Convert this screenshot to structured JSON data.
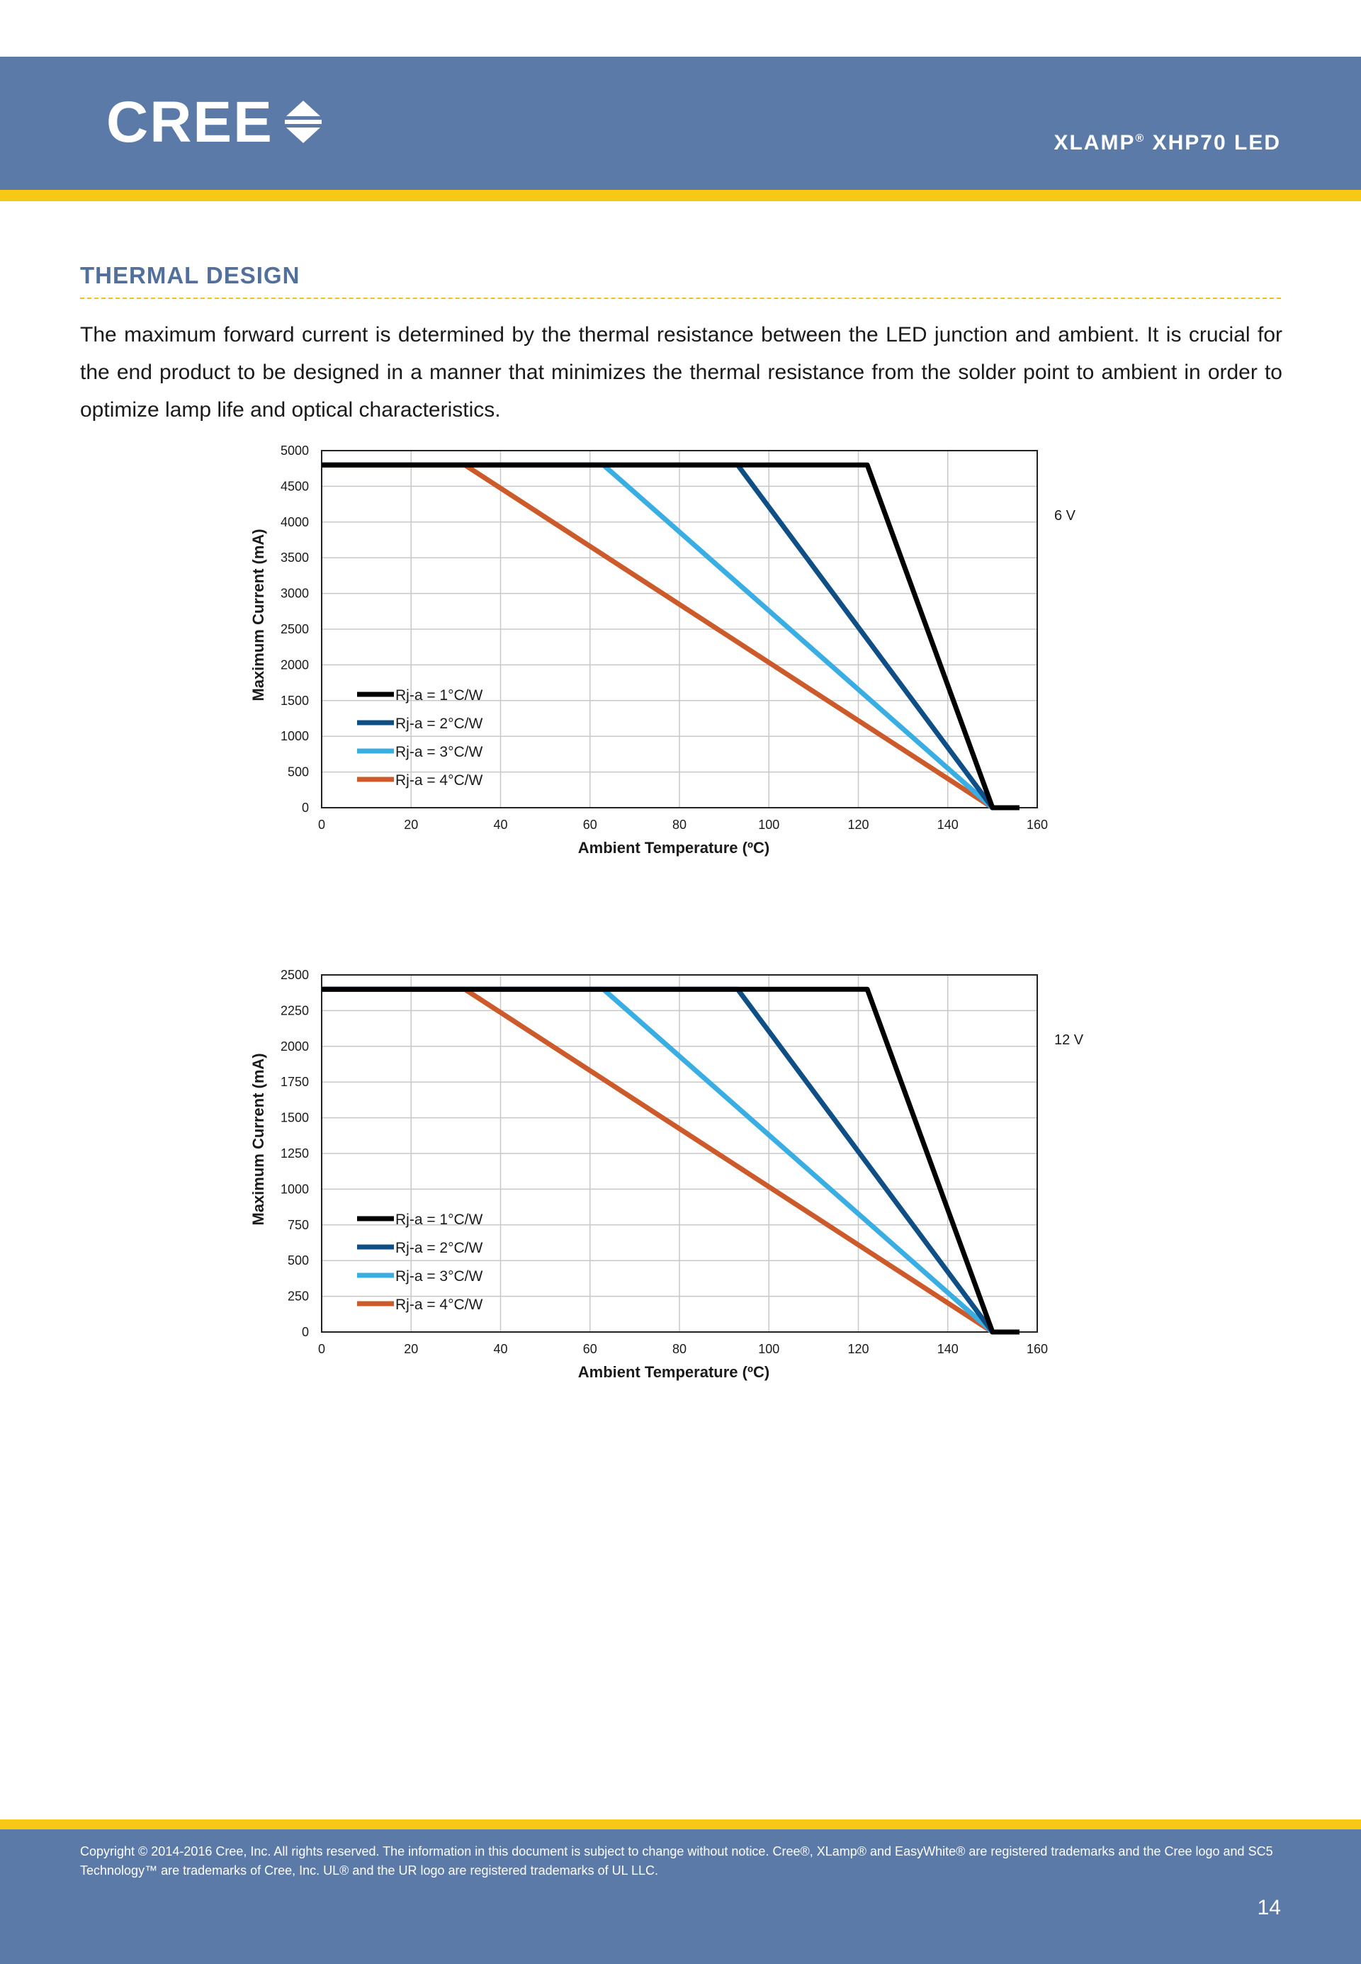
{
  "header": {
    "brand": "CREE",
    "product": "XLAMP",
    "registered": "®",
    "model": "XHP70 LED"
  },
  "section": {
    "title": "THERMAL DESIGN",
    "intro": "The maximum forward current is determined by the thermal resistance between the LED junction and ambient. It is crucial for the end product to be designed in a manner that minimizes the thermal resistance from the solder point to ambient in order to optimize lamp life and optical characteristics."
  },
  "colors": {
    "header_bg": "#5b7aa8",
    "accent_yellow": "#f7c815",
    "title_blue": "#52709b"
  },
  "chart_data": [
    {
      "type": "line",
      "title": "",
      "side_label": "6 V",
      "xlabel": "Ambient Temperature (ºC)",
      "ylabel": "Maximum Current (mA)",
      "xlim": [
        0,
        160
      ],
      "ylim": [
        0,
        5000
      ],
      "xticks": [
        0,
        20,
        40,
        60,
        80,
        100,
        120,
        140,
        160
      ],
      "yticks": [
        0,
        500,
        1000,
        1500,
        2000,
        2500,
        3000,
        3500,
        4000,
        4500,
        5000
      ],
      "grid": true,
      "legend_position": "bottom-left",
      "series": [
        {
          "name": "Rj-a = 1°C/W",
          "color": "#000000",
          "x": [
            0,
            122,
            150,
            156
          ],
          "y": [
            4800,
            4800,
            0,
            0
          ]
        },
        {
          "name": "Rj-a = 2°C/W",
          "color": "#0f4f86",
          "x": [
            0,
            93,
            150,
            156
          ],
          "y": [
            4800,
            4800,
            0,
            0
          ]
        },
        {
          "name": "Rj-a = 3°C/W",
          "color": "#3aaee3",
          "x": [
            0,
            63,
            150,
            156
          ],
          "y": [
            4800,
            4800,
            0,
            0
          ]
        },
        {
          "name": "Rj-a = 4°C/W",
          "color": "#cc5a2a",
          "x": [
            0,
            32,
            150,
            156
          ],
          "y": [
            4800,
            4800,
            0,
            0
          ]
        }
      ]
    },
    {
      "type": "line",
      "title": "",
      "side_label": "12 V",
      "xlabel": "Ambient Temperature (ºC)",
      "ylabel": "Maximum Current (mA)",
      "xlim": [
        0,
        160
      ],
      "ylim": [
        0,
        2500
      ],
      "xticks": [
        0,
        20,
        40,
        60,
        80,
        100,
        120,
        140,
        160
      ],
      "yticks": [
        0,
        250,
        500,
        750,
        1000,
        1250,
        1500,
        1750,
        2000,
        2250,
        2500
      ],
      "grid": true,
      "legend_position": "bottom-left",
      "series": [
        {
          "name": "Rj-a = 1°C/W",
          "color": "#000000",
          "x": [
            0,
            122,
            150,
            156
          ],
          "y": [
            2400,
            2400,
            0,
            0
          ]
        },
        {
          "name": "Rj-a = 2°C/W",
          "color": "#0f4f86",
          "x": [
            0,
            93,
            150,
            156
          ],
          "y": [
            2400,
            2400,
            0,
            0
          ]
        },
        {
          "name": "Rj-a = 3°C/W",
          "color": "#3aaee3",
          "x": [
            0,
            63,
            150,
            156
          ],
          "y": [
            2400,
            2400,
            0,
            0
          ]
        },
        {
          "name": "Rj-a = 4°C/W",
          "color": "#cc5a2a",
          "x": [
            0,
            32,
            150,
            156
          ],
          "y": [
            2400,
            2400,
            0,
            0
          ]
        }
      ]
    }
  ],
  "footer": {
    "copyright": "Copyright © 2014-2016 Cree, Inc. All rights reserved. The information in this document is subject to change without notice. Cree®, XLamp® and EasyWhite® are registered trademarks and the Cree logo and SC5 Technology™ are trademarks of Cree, Inc. UL® and the UR logo are registered trademarks of UL LLC.",
    "page": "14"
  }
}
